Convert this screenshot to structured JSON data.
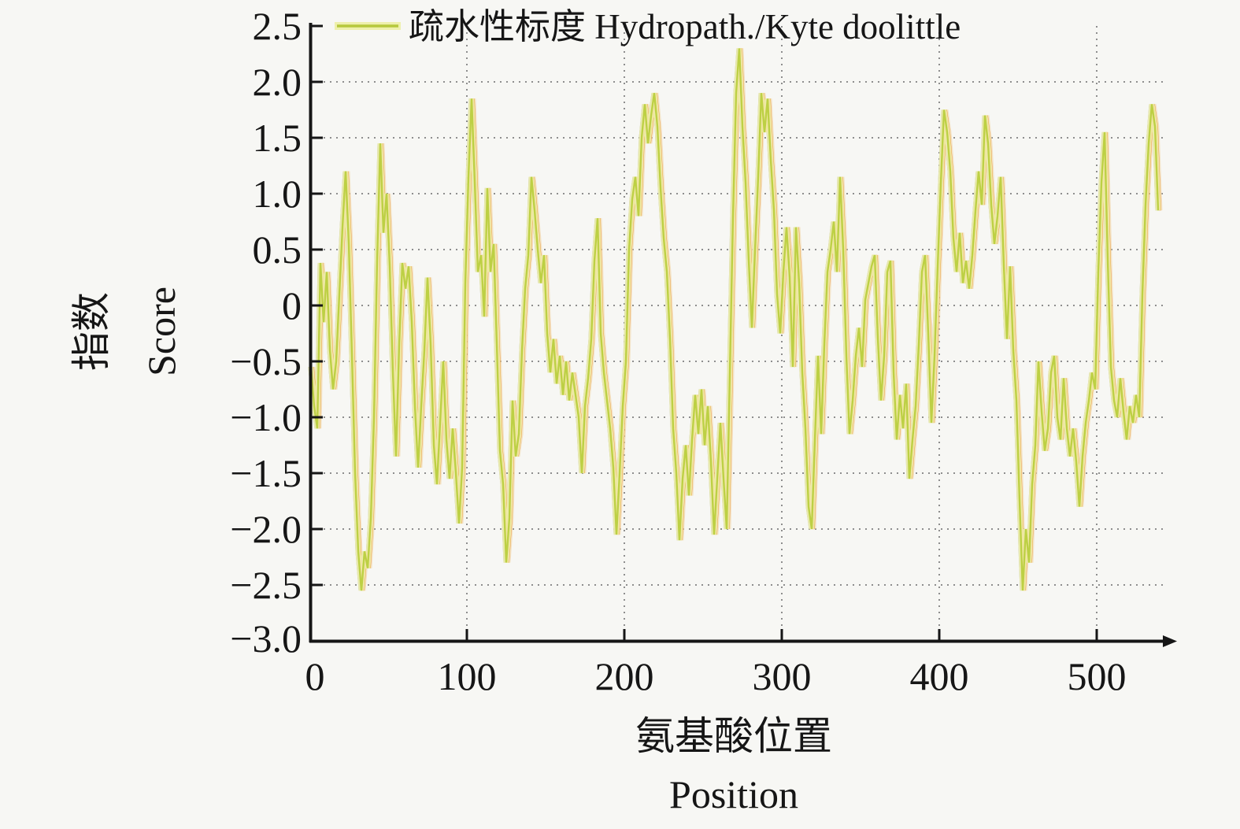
{
  "chart_data": {
    "type": "line",
    "title": "",
    "xlabel_zh": "氨基酸位置",
    "xlabel_en": "Position",
    "ylabel_zh": "指数",
    "ylabel_en": "Score",
    "legend_label": "疏水性标度 Hydropath./Kyte doolittle",
    "legend_position": "top",
    "grid": "dotted",
    "xlim": [
      0,
      550
    ],
    "ylim": [
      -3.0,
      2.5
    ],
    "xticks": [
      0,
      100,
      200,
      300,
      400,
      500
    ],
    "yticks": [
      2.5,
      2.0,
      1.5,
      1.0,
      0.5,
      0,
      -0.5,
      -1.0,
      -1.5,
      -2.0,
      -2.5,
      -3.0
    ],
    "xtick_labels": [
      "0",
      "100",
      "200",
      "300",
      "400",
      "500"
    ],
    "ytick_labels": [
      "2.5",
      "2.0",
      "1.5",
      "1.0",
      "0.5",
      "0",
      "−0.5",
      "−1.0",
      "−1.5",
      "−2.0",
      "−2.5",
      "−3.0"
    ],
    "style": {
      "background": "#f7f7f4",
      "axis_color": "#161616",
      "grid_color": "#8e8e8e",
      "line_main": "#bdd044",
      "line_halo": "#eef0ad",
      "line_under_orange": "#ee8f33",
      "line_under_orange_halo": "#f0d3a0",
      "line_shadow_gray": "#9e9e97"
    },
    "series": [
      {
        "name": "疏水性标度 Hydropath./Kyte doolittle",
        "color": "#bdd044",
        "points": [
          [
            1,
            -0.55
          ],
          [
            3,
            -0.9
          ],
          [
            5,
            -1.1
          ],
          [
            7,
            0.38
          ],
          [
            9,
            -0.15
          ],
          [
            11,
            0.3
          ],
          [
            13,
            -0.4
          ],
          [
            15,
            -0.75
          ],
          [
            17,
            -0.5
          ],
          [
            19,
            0.1
          ],
          [
            21,
            0.7
          ],
          [
            23,
            1.2
          ],
          [
            25,
            0.55
          ],
          [
            27,
            -0.45
          ],
          [
            29,
            -1.5
          ],
          [
            31,
            -2.2
          ],
          [
            33,
            -2.55
          ],
          [
            35,
            -2.2
          ],
          [
            37,
            -2.35
          ],
          [
            39,
            -1.9
          ],
          [
            41,
            -1.0
          ],
          [
            43,
            0.4
          ],
          [
            45,
            1.45
          ],
          [
            47,
            0.65
          ],
          [
            49,
            1.0
          ],
          [
            51,
            0.35
          ],
          [
            53,
            -0.6
          ],
          [
            55,
            -1.35
          ],
          [
            57,
            -0.35
          ],
          [
            59,
            0.38
          ],
          [
            61,
            0.15
          ],
          [
            63,
            0.35
          ],
          [
            65,
            -0.15
          ],
          [
            67,
            -0.9
          ],
          [
            69,
            -1.45
          ],
          [
            71,
            -0.9
          ],
          [
            73,
            -0.4
          ],
          [
            75,
            0.25
          ],
          [
            77,
            -0.35
          ],
          [
            79,
            -1.25
          ],
          [
            81,
            -1.6
          ],
          [
            83,
            -1.05
          ],
          [
            85,
            -0.5
          ],
          [
            87,
            -1.2
          ],
          [
            89,
            -1.55
          ],
          [
            91,
            -1.1
          ],
          [
            93,
            -1.5
          ],
          [
            95,
            -1.95
          ],
          [
            97,
            -1.45
          ],
          [
            99,
            0.2
          ],
          [
            101,
            1.15
          ],
          [
            103,
            1.85
          ],
          [
            105,
            1.1
          ],
          [
            107,
            0.3
          ],
          [
            109,
            0.45
          ],
          [
            111,
            -0.1
          ],
          [
            113,
            1.05
          ],
          [
            115,
            0.3
          ],
          [
            117,
            0.55
          ],
          [
            119,
            -0.35
          ],
          [
            121,
            -1.3
          ],
          [
            123,
            -1.6
          ],
          [
            125,
            -2.3
          ],
          [
            127,
            -1.9
          ],
          [
            129,
            -0.85
          ],
          [
            131,
            -1.35
          ],
          [
            133,
            -1.15
          ],
          [
            135,
            -0.4
          ],
          [
            137,
            0.15
          ],
          [
            139,
            0.45
          ],
          [
            141,
            1.15
          ],
          [
            143,
            0.85
          ],
          [
            145,
            0.5
          ],
          [
            147,
            0.2
          ],
          [
            149,
            0.45
          ],
          [
            151,
            -0.25
          ],
          [
            153,
            -0.6
          ],
          [
            155,
            -0.3
          ],
          [
            157,
            -0.7
          ],
          [
            159,
            -0.45
          ],
          [
            161,
            -0.8
          ],
          [
            163,
            -0.5
          ],
          [
            165,
            -0.85
          ],
          [
            167,
            -0.6
          ],
          [
            169,
            -0.8
          ],
          [
            171,
            -1.0
          ],
          [
            173,
            -1.5
          ],
          [
            175,
            -0.9
          ],
          [
            177,
            -0.65
          ],
          [
            179,
            -0.3
          ],
          [
            181,
            0.4
          ],
          [
            183,
            0.78
          ],
          [
            185,
            -0.25
          ],
          [
            187,
            -0.6
          ],
          [
            189,
            -0.85
          ],
          [
            191,
            -1.1
          ],
          [
            193,
            -1.45
          ],
          [
            195,
            -2.05
          ],
          [
            197,
            -1.5
          ],
          [
            199,
            -0.9
          ],
          [
            201,
            -0.5
          ],
          [
            203,
            0.5
          ],
          [
            205,
            0.95
          ],
          [
            207,
            1.15
          ],
          [
            209,
            0.8
          ],
          [
            211,
            1.5
          ],
          [
            213,
            1.8
          ],
          [
            215,
            1.45
          ],
          [
            217,
            1.7
          ],
          [
            219,
            1.9
          ],
          [
            221,
            1.6
          ],
          [
            223,
            1.05
          ],
          [
            225,
            0.6
          ],
          [
            227,
            0.3
          ],
          [
            229,
            -0.3
          ],
          [
            231,
            -1.1
          ],
          [
            233,
            -1.5
          ],
          [
            235,
            -2.1
          ],
          [
            237,
            -1.55
          ],
          [
            239,
            -1.25
          ],
          [
            241,
            -1.7
          ],
          [
            243,
            -1.2
          ],
          [
            245,
            -0.8
          ],
          [
            247,
            -1.15
          ],
          [
            249,
            -0.75
          ],
          [
            251,
            -1.25
          ],
          [
            253,
            -0.9
          ],
          [
            255,
            -1.4
          ],
          [
            257,
            -2.05
          ],
          [
            259,
            -1.55
          ],
          [
            261,
            -1.05
          ],
          [
            263,
            -1.55
          ],
          [
            265,
            -2.0
          ],
          [
            267,
            -0.6
          ],
          [
            269,
            0.8
          ],
          [
            271,
            1.9
          ],
          [
            273,
            2.3
          ],
          [
            275,
            1.6
          ],
          [
            277,
            1.1
          ],
          [
            279,
            0.4
          ],
          [
            281,
            -0.2
          ],
          [
            283,
            0.5
          ],
          [
            285,
            1.15
          ],
          [
            287,
            1.9
          ],
          [
            289,
            1.55
          ],
          [
            291,
            1.85
          ],
          [
            293,
            1.3
          ],
          [
            295,
            0.85
          ],
          [
            297,
            0.1
          ],
          [
            299,
            -0.25
          ],
          [
            301,
            0.3
          ],
          [
            303,
            0.7
          ],
          [
            305,
            0.25
          ],
          [
            307,
            -0.55
          ],
          [
            309,
            0.7
          ],
          [
            311,
            0.2
          ],
          [
            313,
            -0.6
          ],
          [
            315,
            -1.1
          ],
          [
            317,
            -1.8
          ],
          [
            319,
            -2.0
          ],
          [
            321,
            -1.2
          ],
          [
            323,
            -0.45
          ],
          [
            325,
            -1.15
          ],
          [
            327,
            -0.35
          ],
          [
            329,
            0.3
          ],
          [
            331,
            0.5
          ],
          [
            333,
            0.75
          ],
          [
            335,
            0.3
          ],
          [
            337,
            1.15
          ],
          [
            339,
            0.5
          ],
          [
            341,
            -0.45
          ],
          [
            343,
            -1.15
          ],
          [
            345,
            -0.85
          ],
          [
            347,
            -0.45
          ],
          [
            349,
            -0.2
          ],
          [
            351,
            -0.55
          ],
          [
            353,
            0.05
          ],
          [
            355,
            0.2
          ],
          [
            357,
            0.35
          ],
          [
            359,
            0.45
          ],
          [
            361,
            -0.3
          ],
          [
            363,
            -0.85
          ],
          [
            365,
            -0.45
          ],
          [
            367,
            0.3
          ],
          [
            369,
            0.4
          ],
          [
            371,
            -0.6
          ],
          [
            373,
            -1.2
          ],
          [
            375,
            -0.8
          ],
          [
            377,
            -1.1
          ],
          [
            379,
            -0.7
          ],
          [
            381,
            -1.55
          ],
          [
            383,
            -1.2
          ],
          [
            385,
            -0.9
          ],
          [
            387,
            -0.35
          ],
          [
            389,
            0.3
          ],
          [
            391,
            0.45
          ],
          [
            393,
            -0.25
          ],
          [
            395,
            -1.05
          ],
          [
            397,
            -0.45
          ],
          [
            399,
            0.35
          ],
          [
            401,
            1.1
          ],
          [
            403,
            1.75
          ],
          [
            405,
            1.55
          ],
          [
            407,
            1.2
          ],
          [
            409,
            0.6
          ],
          [
            411,
            0.3
          ],
          [
            413,
            0.65
          ],
          [
            415,
            0.2
          ],
          [
            417,
            0.4
          ],
          [
            419,
            0.15
          ],
          [
            421,
            0.45
          ],
          [
            423,
            0.85
          ],
          [
            425,
            1.2
          ],
          [
            427,
            0.9
          ],
          [
            429,
            1.7
          ],
          [
            431,
            1.45
          ],
          [
            433,
            0.9
          ],
          [
            435,
            0.55
          ],
          [
            437,
            0.8
          ],
          [
            439,
            1.15
          ],
          [
            441,
            0.35
          ],
          [
            443,
            -0.3
          ],
          [
            445,
            0.35
          ],
          [
            447,
            -0.4
          ],
          [
            449,
            -0.85
          ],
          [
            451,
            -1.75
          ],
          [
            453,
            -2.55
          ],
          [
            455,
            -2.0
          ],
          [
            457,
            -2.3
          ],
          [
            459,
            -1.6
          ],
          [
            461,
            -1.25
          ],
          [
            463,
            -0.5
          ],
          [
            465,
            -0.95
          ],
          [
            467,
            -1.3
          ],
          [
            469,
            -1.1
          ],
          [
            471,
            -0.6
          ],
          [
            473,
            -0.45
          ],
          [
            475,
            -1.0
          ],
          [
            477,
            -1.2
          ],
          [
            479,
            -0.65
          ],
          [
            481,
            -1.1
          ],
          [
            483,
            -1.35
          ],
          [
            485,
            -1.1
          ],
          [
            487,
            -1.4
          ],
          [
            489,
            -1.8
          ],
          [
            491,
            -1.35
          ],
          [
            493,
            -1.05
          ],
          [
            495,
            -0.85
          ],
          [
            497,
            -0.6
          ],
          [
            499,
            -0.75
          ],
          [
            501,
            0.3
          ],
          [
            503,
            1.1
          ],
          [
            505,
            1.55
          ],
          [
            507,
            0.4
          ],
          [
            509,
            -0.55
          ],
          [
            511,
            -0.85
          ],
          [
            513,
            -1.0
          ],
          [
            515,
            -0.65
          ],
          [
            517,
            -0.95
          ],
          [
            519,
            -1.2
          ],
          [
            521,
            -0.9
          ],
          [
            523,
            -1.05
          ],
          [
            525,
            -0.8
          ],
          [
            527,
            -1.0
          ],
          [
            529,
            0.1
          ],
          [
            531,
            0.9
          ],
          [
            533,
            1.45
          ],
          [
            535,
            1.8
          ],
          [
            537,
            1.6
          ],
          [
            539,
            0.85
          ]
        ]
      }
    ]
  }
}
